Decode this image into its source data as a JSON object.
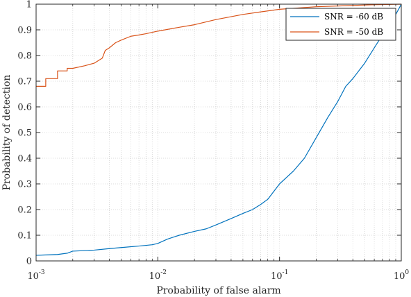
{
  "chart_data": {
    "type": "line",
    "xscale": "log",
    "xlim": [
      0.001,
      1
    ],
    "ylim": [
      0,
      1
    ],
    "xlabel": "Probability of false alarm",
    "ylabel": "Probability of detection",
    "grid": true,
    "legend_position": "top-right",
    "x_ticks": [
      {
        "base": "10",
        "exp": "-3",
        "value": 0.001
      },
      {
        "base": "10",
        "exp": "-2",
        "value": 0.01
      },
      {
        "base": "10",
        "exp": "-1",
        "value": 0.1
      },
      {
        "base": "10",
        "exp": "0",
        "value": 1
      }
    ],
    "y_ticks": [
      "0",
      "0.1",
      "0.2",
      "0.3",
      "0.4",
      "0.5",
      "0.6",
      "0.7",
      "0.8",
      "0.9",
      "1"
    ],
    "series": [
      {
        "name": "SNR = -60 dB",
        "color": "#0072BD",
        "points": [
          [
            0.001,
            0.022
          ],
          [
            0.0015,
            0.025
          ],
          [
            0.0018,
            0.03
          ],
          [
            0.002,
            0.038
          ],
          [
            0.003,
            0.042
          ],
          [
            0.004,
            0.048
          ],
          [
            0.005,
            0.052
          ],
          [
            0.007,
            0.058
          ],
          [
            0.009,
            0.063
          ],
          [
            0.01,
            0.068
          ],
          [
            0.012,
            0.085
          ],
          [
            0.015,
            0.1
          ],
          [
            0.02,
            0.115
          ],
          [
            0.025,
            0.125
          ],
          [
            0.03,
            0.14
          ],
          [
            0.04,
            0.165
          ],
          [
            0.05,
            0.185
          ],
          [
            0.06,
            0.2
          ],
          [
            0.07,
            0.22
          ],
          [
            0.08,
            0.24
          ],
          [
            0.1,
            0.3
          ],
          [
            0.13,
            0.35
          ],
          [
            0.16,
            0.4
          ],
          [
            0.2,
            0.48
          ],
          [
            0.25,
            0.56
          ],
          [
            0.3,
            0.62
          ],
          [
            0.35,
            0.68
          ],
          [
            0.4,
            0.71
          ],
          [
            0.5,
            0.77
          ],
          [
            0.6,
            0.83
          ],
          [
            0.7,
            0.88
          ],
          [
            0.8,
            0.92
          ],
          [
            0.9,
            0.96
          ],
          [
            0.95,
            0.98
          ],
          [
            1.0,
            1.0
          ]
        ]
      },
      {
        "name": "SNR = -50 dB",
        "color": "#D95319",
        "points": [
          [
            0.001,
            0.68
          ],
          [
            0.0012,
            0.68
          ],
          [
            0.0012,
            0.71
          ],
          [
            0.0015,
            0.71
          ],
          [
            0.0015,
            0.74
          ],
          [
            0.0018,
            0.74
          ],
          [
            0.0018,
            0.75
          ],
          [
            0.002,
            0.75
          ],
          [
            0.0025,
            0.76
          ],
          [
            0.003,
            0.77
          ],
          [
            0.0035,
            0.79
          ],
          [
            0.0037,
            0.82
          ],
          [
            0.004,
            0.83
          ],
          [
            0.0045,
            0.85
          ],
          [
            0.005,
            0.86
          ],
          [
            0.006,
            0.875
          ],
          [
            0.007,
            0.88
          ],
          [
            0.008,
            0.885
          ],
          [
            0.01,
            0.895
          ],
          [
            0.015,
            0.91
          ],
          [
            0.02,
            0.92
          ],
          [
            0.03,
            0.94
          ],
          [
            0.05,
            0.96
          ],
          [
            0.07,
            0.97
          ],
          [
            0.1,
            0.98
          ],
          [
            0.2,
            0.99
          ],
          [
            0.4,
            0.995
          ],
          [
            0.6,
            0.998
          ],
          [
            1.0,
            1.0
          ]
        ]
      }
    ]
  }
}
